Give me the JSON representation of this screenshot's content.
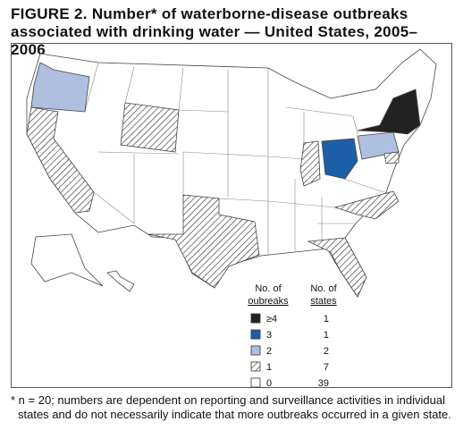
{
  "title": "FIGURE 2. Number* of waterborne-disease outbreaks associated with drinking water — United States, 2005–2006",
  "legend": {
    "header_outbreaks": [
      "No. of",
      "oubreaks"
    ],
    "header_states": [
      "No. of",
      "states"
    ],
    "rows": [
      {
        "outbreaks": "≥4",
        "states": 1
      },
      {
        "outbreaks": "3",
        "states": 1
      },
      {
        "outbreaks": "2",
        "states": 2
      },
      {
        "outbreaks": "1",
        "states": 7
      },
      {
        "outbreaks": "0",
        "states": 39
      }
    ]
  },
  "footnote": "* n = 20; numbers are dependent on reporting and surveillance activities in individual states and do not necessarily indicate that more outbreaks occurred in a given state."
}
